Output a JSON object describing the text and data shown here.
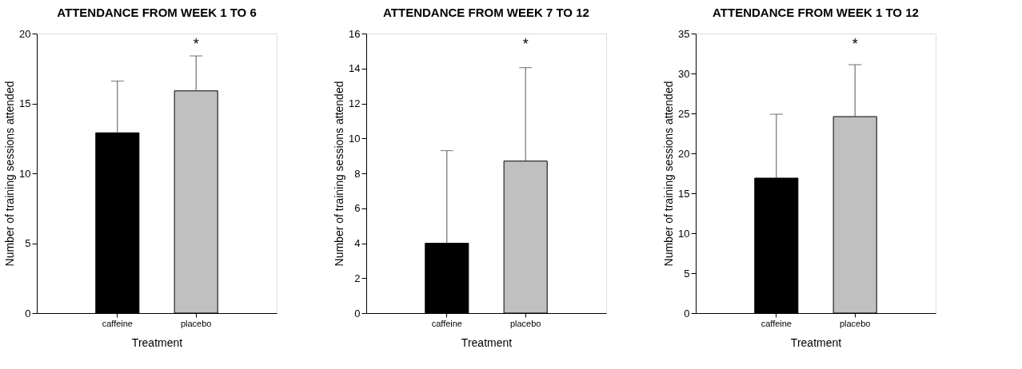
{
  "chart_data": [
    {
      "type": "bar",
      "title": "ATTENDANCE FROM WEEK 1 TO 6",
      "xlabel": "Treatment",
      "ylabel": "Number of training sessions attended",
      "categories": [
        "caffeine",
        "placebo"
      ],
      "values": [
        12.9,
        15.9
      ],
      "colors": [
        "#000000",
        "#c0c0c0"
      ],
      "errors": [
        [
          12.9,
          16.6
        ],
        [
          15.9,
          18.4
        ]
      ],
      "ylim": [
        0,
        20
      ],
      "yticks": [
        0,
        5,
        10,
        15,
        20
      ],
      "annotations": [
        "*"
      ]
    },
    {
      "type": "bar",
      "title": "ATTENDANCE FROM WEEK 7 TO 12",
      "xlabel": "Treatment",
      "ylabel": "Number of training sessions attended",
      "categories": [
        "caffeine",
        "placebo"
      ],
      "values": [
        4.0,
        8.7
      ],
      "colors": [
        "#000000",
        "#c0c0c0"
      ],
      "errors": [
        [
          4.0,
          9.3
        ],
        [
          8.7,
          14.05
        ]
      ],
      "ylim": [
        0,
        16
      ],
      "yticks": [
        0,
        2,
        4,
        6,
        8,
        10,
        12,
        14,
        16
      ],
      "annotations": [
        "*"
      ]
    },
    {
      "type": "bar",
      "title": "ATTENDANCE FROM WEEK 1 TO 12",
      "xlabel": "Treatment",
      "ylabel": "Number of training sessions attended",
      "categories": [
        "caffeine",
        "placebo"
      ],
      "values": [
        16.9,
        24.6
      ],
      "colors": [
        "#000000",
        "#c0c0c0"
      ],
      "errors": [
        [
          16.9,
          24.9
        ],
        [
          24.6,
          31.1
        ]
      ],
      "ylim": [
        0,
        35
      ],
      "yticks": [
        0,
        5,
        10,
        15,
        20,
        25,
        30,
        35
      ],
      "annotations": [
        "*"
      ]
    }
  ]
}
